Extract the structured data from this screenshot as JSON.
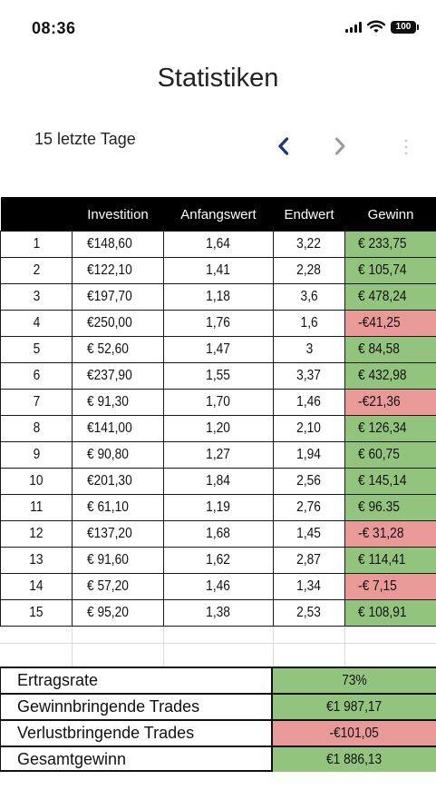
{
  "status_bar": {
    "time": "08:36",
    "battery": "100"
  },
  "header": {
    "title": "Statistiken",
    "period": "15 letzte Tage"
  },
  "table": {
    "columns": [
      "",
      "Investition",
      "Anfangswert",
      "Endwert",
      "Gewinn"
    ],
    "rows": [
      {
        "n": "1",
        "investition": "€148,60",
        "anfangswert": "1,64",
        "endwert": "3,22",
        "gewinn": "€ 233,75",
        "status": "gain"
      },
      {
        "n": "2",
        "investition": "€122,10",
        "anfangswert": "1,41",
        "endwert": "2,28",
        "gewinn": "€ 105,74",
        "status": "gain"
      },
      {
        "n": "3",
        "investition": "€197,70",
        "anfangswert": "1,18",
        "endwert": "3,6",
        "gewinn": "€ 478,24",
        "status": "gain"
      },
      {
        "n": "4",
        "investition": "€250,00",
        "anfangswert": "1,76",
        "endwert": "1,6",
        "gewinn": "-€41,25",
        "status": "loss"
      },
      {
        "n": "5",
        "investition": "€ 52,60",
        "anfangswert": "1,47",
        "endwert": "3",
        "gewinn": "€ 84,58",
        "status": "gain"
      },
      {
        "n": "6",
        "investition": "€237,90",
        "anfangswert": "1,55",
        "endwert": "3,37",
        "gewinn": "€ 432,98",
        "status": "gain"
      },
      {
        "n": "7",
        "investition": "€ 91,30",
        "anfangswert": "1,70",
        "endwert": "1,46",
        "gewinn": "-€21,36",
        "status": "loss"
      },
      {
        "n": "8",
        "investition": "€141,00",
        "anfangswert": "1,20",
        "endwert": "2,10",
        "gewinn": "€ 126,34",
        "status": "gain"
      },
      {
        "n": "9",
        "investition": "€ 90,80",
        "anfangswert": "1,27",
        "endwert": "1,94",
        "gewinn": "€ 60,75",
        "status": "gain"
      },
      {
        "n": "10",
        "investition": "€201,30",
        "anfangswert": "1,84",
        "endwert": "2,56",
        "gewinn": "€ 145,14",
        "status": "gain"
      },
      {
        "n": "11",
        "investition": "€ 61,10",
        "anfangswert": "1,19",
        "endwert": "2,76",
        "gewinn": "€ 96.35",
        "status": "gain"
      },
      {
        "n": "12",
        "investition": "€137,20",
        "anfangswert": "1,68",
        "endwert": "1,45",
        "gewinn": "-€ 31,28",
        "status": "loss"
      },
      {
        "n": "13",
        "investition": "€ 91,60",
        "anfangswert": "1,62",
        "endwert": "2,87",
        "gewinn": "€ 114,41",
        "status": "gain"
      },
      {
        "n": "14",
        "investition": "€ 57,20",
        "anfangswert": "1,46",
        "endwert": "1,34",
        "gewinn": "-€ 7,15",
        "status": "loss"
      },
      {
        "n": "15",
        "investition": "€ 95,20",
        "anfangswert": "1,38",
        "endwert": "2,53",
        "gewinn": "€ 108,91",
        "status": "gain"
      }
    ]
  },
  "summary": [
    {
      "label": "Ertragsrate",
      "value": "73%",
      "status": "gain"
    },
    {
      "label": "Gewinnbringende Trades",
      "value": "€1 987,17",
      "status": "gain"
    },
    {
      "label": "Verlustbringende Trades",
      "value": "-€101,05",
      "status": "loss"
    },
    {
      "label": "Gesamtgewinn",
      "value": "€1 886,13",
      "status": "gain"
    }
  ],
  "colors": {
    "gain": "#93c47d",
    "loss": "#ea9999",
    "header_bg": "#000000",
    "nav_active": "#1f3a6e",
    "nav_inactive": "#9a9a9a"
  },
  "icons": {
    "prev": "chevron-left-icon",
    "next": "chevron-right-icon",
    "more": "more-vertical-icon",
    "signal": "signal-icon",
    "wifi": "wifi-icon",
    "battery": "battery-icon"
  }
}
